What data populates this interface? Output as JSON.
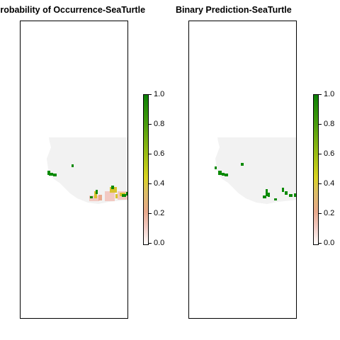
{
  "panels": [
    {
      "id": "left",
      "title": "Probability of Occurrence-SeaTurtle"
    },
    {
      "id": "right",
      "title": "Binary Prediction-SeaTurtle"
    }
  ],
  "legend": {
    "ticks": [
      "0.0",
      "0.2",
      "0.4",
      "0.6",
      "0.8",
      "1.0"
    ],
    "range": [
      0,
      1
    ],
    "colors": {
      "low": "#ffffff",
      "mid": "#d9d321",
      "high": "#0b7f05"
    }
  },
  "map": {
    "land_color": "#f2f2f2",
    "presence_color": "#0b8a05",
    "low_probability_color": "#f2c9c2",
    "mid_probability_color": "#d9c22e"
  }
}
